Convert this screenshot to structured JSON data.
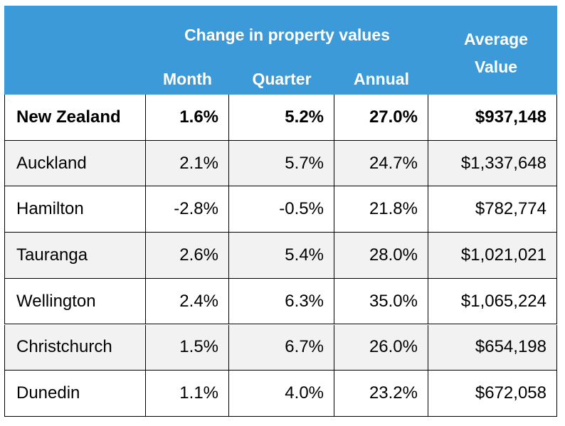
{
  "header": {
    "group_label": "Change in property values",
    "columns": [
      "Month",
      "Quarter",
      "Annual"
    ],
    "average_label": "Average Value"
  },
  "table": {
    "rows": [
      [
        "New Zealand",
        "1.6%",
        "5.2%",
        "27.0%",
        "$937,148"
      ],
      [
        "Auckland",
        "2.1%",
        "5.7%",
        "24.7%",
        "$1,337,648"
      ],
      [
        "Hamilton",
        "-2.8%",
        "-0.5%",
        "21.8%",
        "$782,774"
      ],
      [
        "Tauranga",
        "2.6%",
        "5.4%",
        "28.0%",
        "$1,021,021"
      ],
      [
        "Wellington",
        "2.4%",
        "6.3%",
        "35.0%",
        "$1,065,224"
      ],
      [
        "Christchurch",
        "1.5%",
        "6.7%",
        "26.0%",
        "$654,198"
      ],
      [
        "Dunedin",
        "1.1%",
        "4.0%",
        "23.2%",
        "$672,058"
      ]
    ]
  }
}
